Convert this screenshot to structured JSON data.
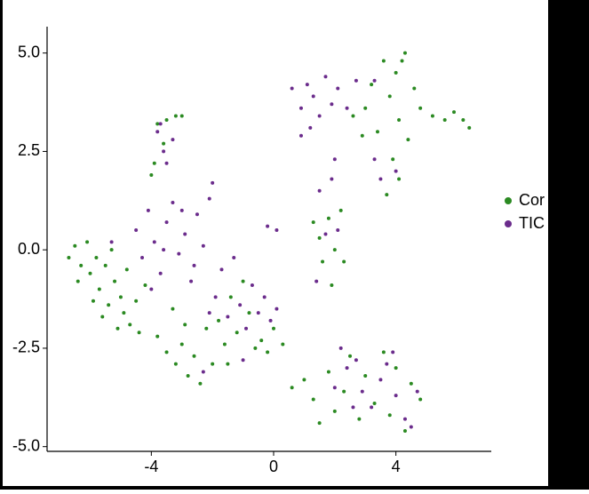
{
  "chart_data": {
    "type": "scatter",
    "xlim": [
      -7.41,
      7.12
    ],
    "ylim": [
      -5.12,
      5.67
    ],
    "xticks": [
      -4,
      0,
      4
    ],
    "yticks": [
      {
        "value": -5,
        "label": "-5.0"
      },
      -2.5,
      {
        "value": 0,
        "label": "0.0"
      },
      2.5,
      {
        "value": 5,
        "label": "5.0"
      }
    ],
    "series": [
      {
        "name": "Cor",
        "color": "#2b8a22",
        "x": [
          -6.7,
          -6.5,
          -6.3,
          -6.1,
          -6.0,
          -5.8,
          -5.7,
          -5.5,
          -5.4,
          -5.3,
          -5.2,
          -5.0,
          -4.9,
          -4.8,
          -4.7,
          -4.5,
          -4.4,
          -4.2,
          -6.4,
          -5.9,
          -5.6,
          -5.1,
          -3.8,
          -3.5,
          -3.2,
          -3.0,
          -2.8,
          -2.6,
          -2.4,
          -2.2,
          -2.0,
          -1.8,
          -1.6,
          -1.4,
          -1.2,
          -1.0,
          -0.8,
          -0.6,
          -0.4,
          -0.2,
          0.0,
          0.3,
          -1.5,
          -2.9,
          -3.3,
          -3.9,
          -3.8,
          -3.5,
          -3.2,
          -3.0,
          -3.6,
          -4.0,
          1.3,
          1.6,
          1.8,
          2.0,
          2.2,
          1.9,
          2.3,
          1.5,
          1.0,
          1.3,
          1.5,
          1.8,
          2.0,
          2.3,
          2.5,
          2.8,
          3.0,
          3.3,
          3.6,
          3.8,
          4.0,
          4.3,
          4.5,
          4.8,
          0.6,
          3.0,
          3.2,
          3.4,
          3.6,
          3.8,
          4.0,
          4.1,
          4.3,
          4.4,
          4.6,
          4.8,
          3.9,
          4.1,
          3.7,
          5.2,
          5.6,
          5.9,
          6.2,
          6.4,
          2.6,
          2.9,
          4.2
        ],
        "y": [
          -0.2,
          0.1,
          -0.4,
          0.2,
          -0.6,
          -0.2,
          -1.0,
          -0.4,
          -1.4,
          0.0,
          -0.8,
          -1.2,
          -1.6,
          -0.5,
          -1.9,
          -1.3,
          -2.1,
          -0.9,
          -0.8,
          -1.3,
          -1.7,
          -2.0,
          -2.2,
          -2.6,
          -2.9,
          -2.4,
          -3.2,
          -2.7,
          -3.4,
          -2.0,
          -2.9,
          -1.8,
          -2.4,
          -1.2,
          -2.1,
          -0.8,
          -1.6,
          -2.5,
          -2.3,
          -2.6,
          -2.0,
          -2.4,
          -2.9,
          -1.9,
          -1.5,
          2.2,
          3.2,
          3.3,
          3.4,
          3.4,
          2.7,
          1.9,
          0.7,
          -0.3,
          0.8,
          0.0,
          1.0,
          -0.9,
          -0.3,
          0.3,
          -3.3,
          -3.8,
          -4.4,
          -3.1,
          -4.1,
          -3.6,
          -2.7,
          -4.3,
          -3.2,
          -3.9,
          -2.6,
          -4.2,
          -3.0,
          -4.6,
          -3.4,
          -3.8,
          -3.5,
          3.6,
          4.2,
          3.0,
          4.8,
          3.9,
          4.5,
          3.3,
          5.0,
          2.8,
          4.1,
          3.6,
          2.3,
          1.8,
          1.4,
          3.4,
          3.3,
          3.5,
          3.3,
          3.1,
          3.4,
          2.9,
          4.8
        ]
      },
      {
        "name": "TIC",
        "color": "#6b2c8c",
        "x": [
          -4.5,
          -4.3,
          -4.1,
          -3.9,
          -3.7,
          -3.5,
          -3.3,
          -3.1,
          -2.9,
          -2.7,
          -2.5,
          -2.3,
          -2.1,
          -3.0,
          -3.6,
          -2.6,
          -4.0,
          -5.3,
          -2.0,
          -1.9,
          -1.7,
          -1.5,
          -1.3,
          -1.1,
          -0.9,
          -0.7,
          -0.5,
          -0.3,
          -0.1,
          0.1,
          -0.2,
          0.1,
          -1.0,
          -2.3,
          -2.1,
          -3.8,
          -3.6,
          -3.5,
          -3.3,
          -3.7,
          1.5,
          1.7,
          1.9,
          1.4,
          2.1,
          2.0,
          0.6,
          0.9,
          1.1,
          1.3,
          1.5,
          1.7,
          1.9,
          2.1,
          2.4,
          2.7,
          1.2,
          0.9,
          3.3,
          3.5,
          4.0,
          3.3,
          2.0,
          2.4,
          2.7,
          2.9,
          3.2,
          3.5,
          3.7,
          4.0,
          4.3,
          4.5,
          2.6,
          3.9,
          4.7,
          2.2
        ],
        "y": [
          0.5,
          -0.2,
          1.0,
          0.2,
          -0.6,
          0.7,
          1.2,
          -0.1,
          0.4,
          -0.8,
          0.9,
          0.1,
          1.3,
          1.0,
          0.0,
          -0.4,
          -1.0,
          0.2,
          1.7,
          -1.2,
          -0.5,
          -1.7,
          -0.2,
          -1.4,
          -2.0,
          -0.9,
          -1.6,
          -1.2,
          -1.8,
          -1.5,
          0.6,
          0.5,
          -2.8,
          -3.1,
          -1.6,
          3.0,
          2.5,
          2.2,
          2.8,
          3.2,
          1.5,
          0.4,
          1.8,
          -0.8,
          0.5,
          2.3,
          4.1,
          3.6,
          4.2,
          3.9,
          3.4,
          4.4,
          3.7,
          4.1,
          3.6,
          4.3,
          3.1,
          2.9,
          4.3,
          1.8,
          2.0,
          2.3,
          -3.5,
          -3.0,
          -2.8,
          -3.6,
          -4.0,
          -3.3,
          -2.9,
          -3.7,
          -4.3,
          -4.5,
          -4.0,
          -2.6,
          -3.6,
          -2.5
        ]
      }
    ]
  }
}
